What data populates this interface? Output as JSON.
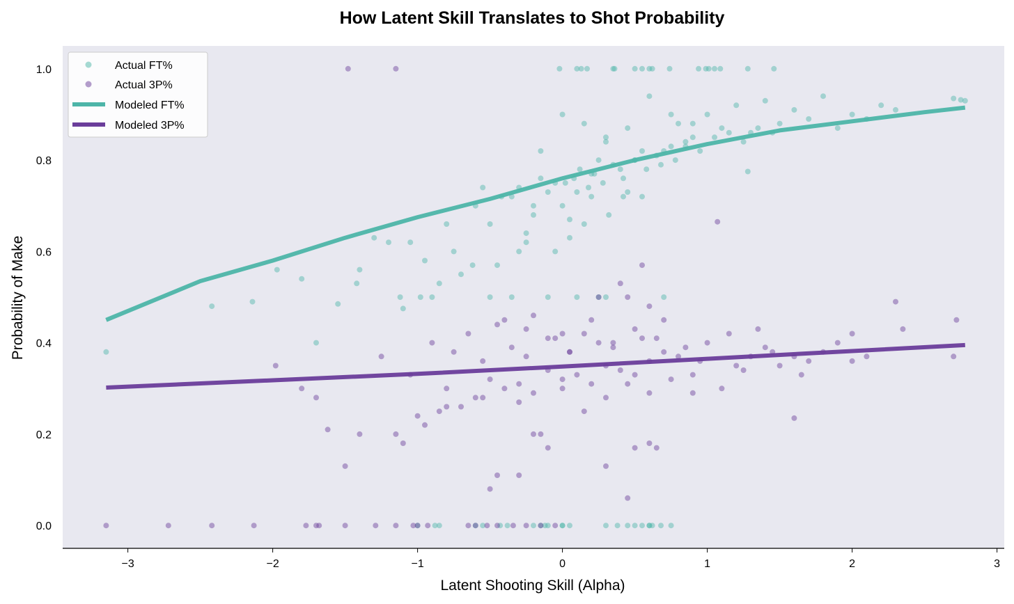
{
  "chart_data": {
    "type": "scatter",
    "title": "How Latent Skill Translates to Shot Probability",
    "xlabel": "Latent Shooting Skill (Alpha)",
    "ylabel": "Probability of Make",
    "xlim": [
      -3.45,
      3.05
    ],
    "ylim": [
      -0.05,
      1.05
    ],
    "xticks": [
      -3,
      -2,
      -1,
      0,
      1,
      2,
      3
    ],
    "xtick_labels": [
      "−3",
      "−2",
      "−1",
      "0",
      "1",
      "2",
      "3"
    ],
    "yticks": [
      0.0,
      0.2,
      0.4,
      0.6,
      0.8,
      1.0
    ],
    "ytick_labels": [
      "0.0",
      "0.2",
      "0.4",
      "0.6",
      "0.8",
      "1.0"
    ],
    "grid": false,
    "legend_position": "top-left",
    "colors": {
      "ft": "#4db5a8",
      "tp": "#6a3d9a",
      "background": "#e8e8f0"
    },
    "legend": [
      {
        "label": "Actual FT%",
        "kind": "marker",
        "series": "ft"
      },
      {
        "label": "Actual 3P%",
        "kind": "marker",
        "series": "tp"
      },
      {
        "label": "Modeled FT%",
        "kind": "line",
        "series": "ft"
      },
      {
        "label": "Modeled 3P%",
        "kind": "line",
        "series": "tp"
      }
    ],
    "series": [
      {
        "name": "Modeled FT%",
        "kind": "line",
        "color": "#4db5a8",
        "x": [
          -3.15,
          -2.5,
          -2.0,
          -1.5,
          -1.0,
          -0.5,
          0.0,
          0.5,
          1.0,
          1.5,
          2.0,
          2.5,
          2.78
        ],
        "y": [
          0.45,
          0.535,
          0.58,
          0.63,
          0.675,
          0.715,
          0.76,
          0.8,
          0.835,
          0.865,
          0.885,
          0.905,
          0.915
        ]
      },
      {
        "name": "Modeled 3P%",
        "kind": "line",
        "color": "#6a3d9a",
        "x": [
          -3.15,
          -2.0,
          -1.0,
          0.0,
          1.0,
          2.0,
          2.78
        ],
        "y": [
          0.302,
          0.318,
          0.332,
          0.348,
          0.365,
          0.382,
          0.395
        ]
      },
      {
        "name": "Actual FT%",
        "kind": "scatter",
        "color": "#4db5a8",
        "x": [
          -0.02,
          0.1,
          0.13,
          0.17,
          0.35,
          0.36,
          0.5,
          0.55,
          0.6,
          0.62,
          0.74,
          0.94,
          0.99,
          1.01,
          1.05,
          1.09,
          1.28,
          1.46,
          2.7,
          2.75,
          2.78,
          -3.15,
          -2.42,
          -2.14,
          -1.97,
          -1.8,
          -1.7,
          -1.55,
          -1.42,
          -1.3,
          -1.12,
          -1.1,
          -0.98,
          -1.0,
          -0.88,
          -0.6,
          -0.55,
          -0.43,
          -0.38,
          -0.2,
          -0.1,
          0.0,
          0.3,
          0.5,
          0.6,
          0.68,
          -0.85,
          -0.15,
          -0.12,
          0.0,
          0.05,
          0.38,
          0.45,
          0.55,
          0.6,
          0.62,
          0.75,
          -0.9,
          -0.5,
          -0.35,
          -0.1,
          0.1,
          0.25,
          0.3,
          0.7,
          1.28,
          -1.05,
          -0.95,
          -0.7,
          -0.62,
          -0.45,
          -0.3,
          -0.25,
          -0.05,
          0.05,
          0.15,
          0.2,
          0.32,
          -0.8,
          -0.6,
          -0.42,
          -0.2,
          -0.1,
          0.0,
          0.08,
          0.18,
          0.28,
          0.45,
          0.55,
          -0.3,
          -0.15,
          0.02,
          0.12,
          0.22,
          0.35,
          0.42,
          0.5,
          0.58,
          0.68,
          0.78,
          0.85,
          0.25,
          0.4,
          0.55,
          0.65,
          0.75,
          0.85,
          0.95,
          1.05,
          1.15,
          1.25,
          1.35,
          1.45,
          0.3,
          0.5,
          0.7,
          0.9,
          1.1,
          1.3,
          1.5,
          1.7,
          1.9,
          2.1,
          2.3,
          0.8,
          1.0,
          1.2,
          1.4,
          1.6,
          1.8,
          2.0,
          2.2,
          -0.15,
          0.0,
          0.15,
          0.3,
          0.45,
          0.6,
          0.75,
          0.9,
          -0.55,
          -0.35,
          -0.2,
          -0.05,
          0.1,
          0.2,
          0.42,
          -1.4,
          -1.2,
          -0.85,
          -0.75,
          -0.5,
          -0.25,
          0.05
        ],
        "y": [
          1.0,
          1.0,
          1.0,
          1.0,
          1.0,
          1.0,
          1.0,
          1.0,
          1.0,
          1.0,
          1.0,
          1.0,
          1.0,
          1.0,
          1.0,
          1.0,
          1.0,
          1.0,
          0.935,
          0.932,
          0.93,
          0.38,
          0.48,
          0.49,
          0.56,
          0.54,
          0.4,
          0.485,
          0.53,
          0.63,
          0.5,
          0.475,
          0.5,
          0.0,
          0.0,
          0.0,
          0.0,
          0.0,
          0.0,
          0.0,
          0.0,
          0.0,
          0.0,
          0.0,
          0.0,
          0.0,
          0.0,
          0.0,
          0.0,
          0.0,
          0.0,
          0.0,
          0.0,
          0.0,
          0.0,
          0.0,
          0.0,
          0.5,
          0.5,
          0.5,
          0.5,
          0.5,
          0.5,
          0.5,
          0.5,
          0.775,
          0.62,
          0.58,
          0.55,
          0.57,
          0.57,
          0.6,
          0.62,
          0.6,
          0.63,
          0.66,
          0.72,
          0.68,
          0.66,
          0.7,
          0.72,
          0.68,
          0.73,
          0.7,
          0.76,
          0.74,
          0.75,
          0.73,
          0.72,
          0.74,
          0.76,
          0.75,
          0.78,
          0.77,
          0.79,
          0.76,
          0.8,
          0.78,
          0.79,
          0.8,
          0.83,
          0.8,
          0.78,
          0.82,
          0.81,
          0.83,
          0.84,
          0.82,
          0.85,
          0.86,
          0.84,
          0.87,
          0.86,
          0.84,
          0.8,
          0.82,
          0.85,
          0.87,
          0.86,
          0.88,
          0.89,
          0.87,
          0.89,
          0.91,
          0.88,
          0.9,
          0.92,
          0.93,
          0.91,
          0.94,
          0.9,
          0.92,
          0.82,
          0.9,
          0.88,
          0.85,
          0.87,
          0.94,
          0.9,
          0.88,
          0.74,
          0.72,
          0.7,
          0.75,
          0.73,
          0.77,
          0.72,
          0.56,
          0.62,
          0.53,
          0.6,
          0.66,
          0.64,
          0.67
        ]
      },
      {
        "name": "Actual 3P%",
        "kind": "scatter",
        "color": "#6a3d9a",
        "x": [
          -1.48,
          -1.15,
          1.07,
          -3.15,
          -2.72,
          -2.42,
          -2.13,
          -1.77,
          -1.7,
          -1.68,
          -1.5,
          -1.29,
          -1.15,
          -1.03,
          -1.0,
          -0.93,
          -0.65,
          -0.6,
          -0.52,
          -0.45,
          -0.34,
          -0.25,
          -0.15,
          -0.05,
          -1.98,
          -1.8,
          -1.7,
          -1.62,
          -1.5,
          -1.4,
          -1.25,
          -1.15,
          -1.1,
          -1.05,
          -0.95,
          -0.85,
          -0.5,
          -0.45,
          -0.3,
          -0.2,
          -0.15,
          -0.1,
          0.3,
          0.45,
          0.5,
          0.6,
          0.65,
          0.9,
          1.6,
          -0.8,
          -0.7,
          -0.6,
          -0.5,
          -0.4,
          -0.3,
          -0.2,
          -0.1,
          0.0,
          0.1,
          0.2,
          0.3,
          0.4,
          0.5,
          0.6,
          -0.9,
          -0.75,
          -0.55,
          -0.35,
          -0.25,
          -0.05,
          0.05,
          0.15,
          0.25,
          0.35,
          0.55,
          0.7,
          0.8,
          -0.65,
          -0.45,
          -0.25,
          -0.1,
          0.05,
          0.2,
          0.35,
          0.5,
          0.65,
          0.85,
          1.0,
          1.15,
          1.3,
          -1.0,
          -0.8,
          -0.55,
          -0.3,
          0.0,
          0.15,
          0.3,
          0.45,
          0.6,
          0.75,
          0.9,
          1.1,
          1.25,
          1.4,
          1.5,
          1.6,
          1.7,
          1.8,
          1.9,
          2.0,
          2.1,
          2.3,
          2.35,
          2.7,
          2.72,
          -0.4,
          -0.2,
          0.0,
          0.25,
          0.4,
          0.55,
          0.7,
          0.95,
          1.2,
          1.45,
          1.65,
          2.0,
          0.45,
          0.6,
          1.35
        ],
        "y": [
          1.0,
          1.0,
          0.665,
          0.0,
          0.0,
          0.0,
          0.0,
          0.0,
          0.0,
          0.0,
          0.0,
          0.0,
          0.0,
          0.0,
          0.0,
          0.0,
          0.0,
          0.0,
          0.0,
          0.0,
          0.0,
          0.0,
          0.0,
          0.0,
          0.35,
          0.3,
          0.28,
          0.21,
          0.13,
          0.2,
          0.37,
          0.2,
          0.18,
          0.33,
          0.22,
          0.25,
          0.08,
          0.11,
          0.11,
          0.2,
          0.2,
          0.17,
          0.13,
          0.06,
          0.17,
          0.18,
          0.17,
          0.29,
          0.235,
          0.3,
          0.26,
          0.28,
          0.32,
          0.3,
          0.31,
          0.29,
          0.34,
          0.32,
          0.33,
          0.31,
          0.35,
          0.34,
          0.33,
          0.36,
          0.4,
          0.38,
          0.36,
          0.39,
          0.37,
          0.41,
          0.38,
          0.42,
          0.4,
          0.39,
          0.41,
          0.38,
          0.37,
          0.42,
          0.44,
          0.43,
          0.41,
          0.38,
          0.45,
          0.4,
          0.43,
          0.41,
          0.39,
          0.4,
          0.42,
          0.37,
          0.24,
          0.26,
          0.28,
          0.27,
          0.3,
          0.25,
          0.28,
          0.31,
          0.29,
          0.32,
          0.33,
          0.3,
          0.34,
          0.39,
          0.35,
          0.37,
          0.36,
          0.38,
          0.4,
          0.42,
          0.37,
          0.49,
          0.43,
          0.37,
          0.45,
          0.45,
          0.46,
          0.42,
          0.5,
          0.53,
          0.57,
          0.45,
          0.36,
          0.35,
          0.38,
          0.33,
          0.36,
          0.5,
          0.48,
          0.43
        ]
      }
    ]
  }
}
